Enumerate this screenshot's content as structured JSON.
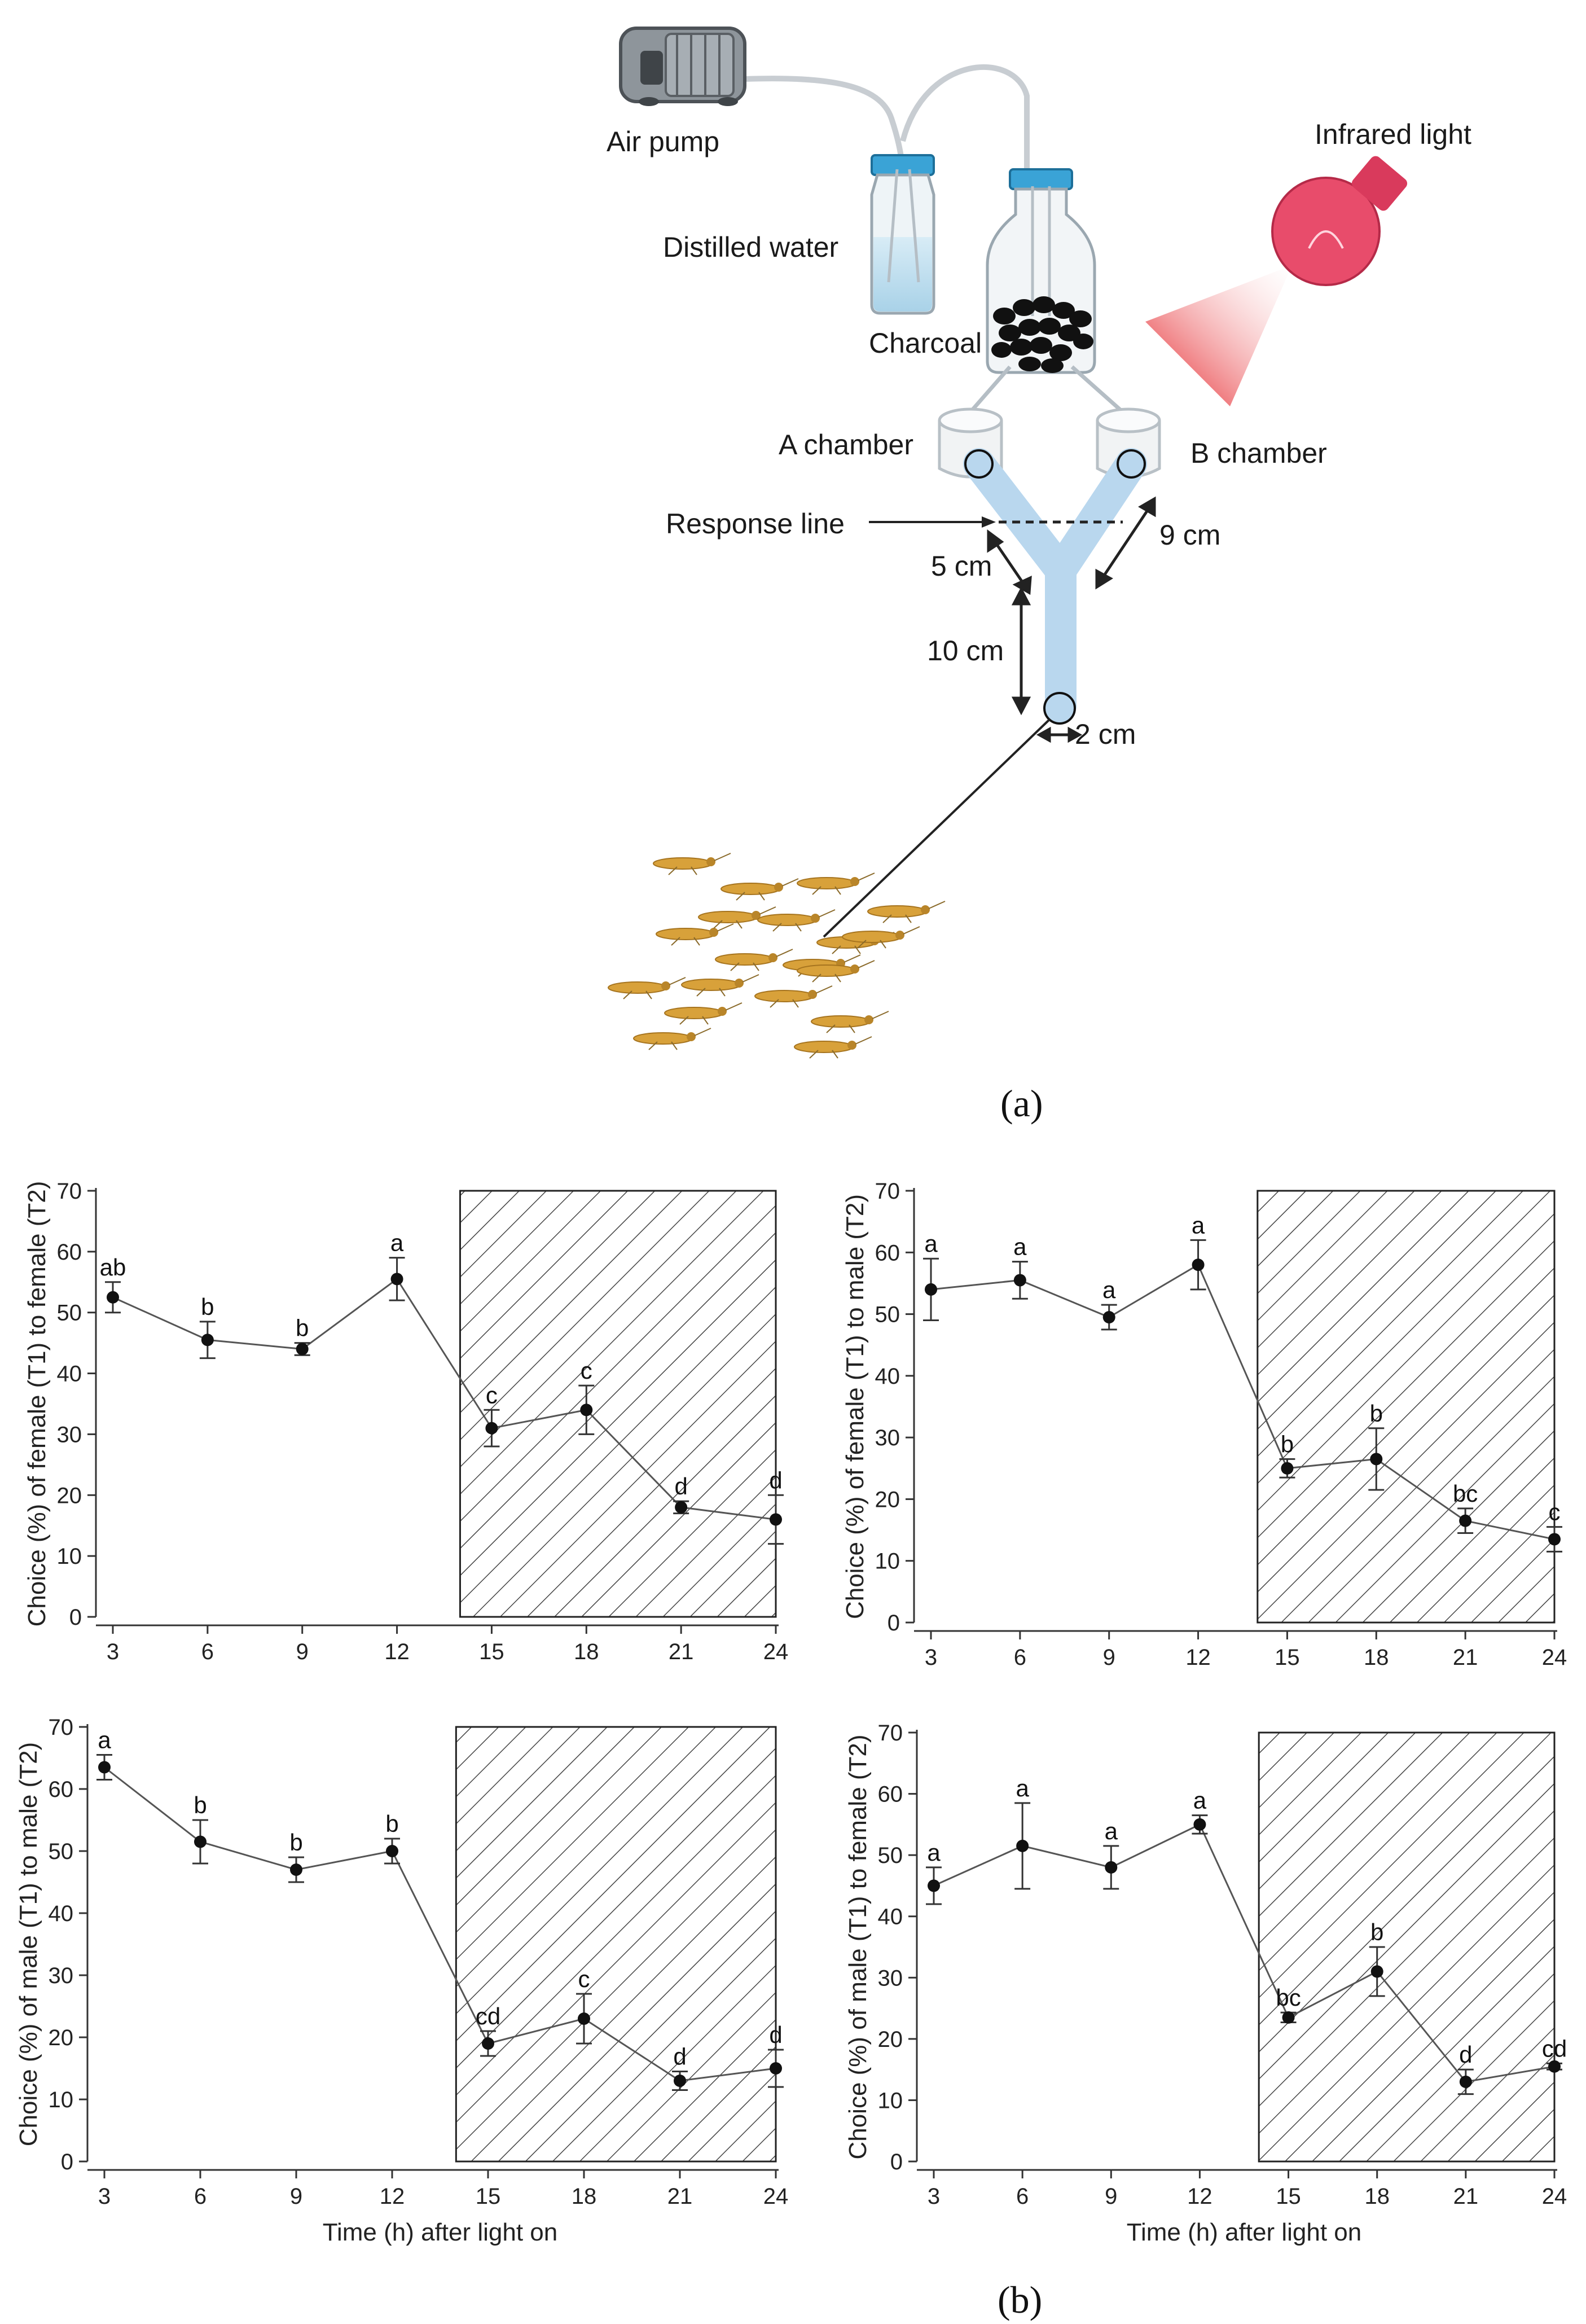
{
  "diagram": {
    "labels": {
      "air_pump": "Air pump",
      "distilled_water": "Distilled water",
      "charcoal": "Charcoal",
      "infrared_light": "Infrared light",
      "a_chamber": "A chamber",
      "b_chamber": "B chamber",
      "response_line": "Response line",
      "dim_5": "5 cm",
      "dim_9": "9 cm",
      "dim_10": "10 cm",
      "dim_2": "2 cm"
    },
    "caption": "(a)"
  },
  "caption_b": "(b)",
  "colors": {
    "tube": "#b9d7ee",
    "light": "#e84c6b",
    "beam": "#e3141a",
    "insect": "#d8a13a",
    "series": "#555555",
    "marker": "#111111"
  },
  "chart_data": [
    {
      "type": "line",
      "ylabel": "Choice (%) of female (T1) to female (T2)",
      "xlabel": "",
      "x": [
        3,
        6,
        9,
        12,
        15,
        18,
        21,
        24
      ],
      "values": [
        52.5,
        45.5,
        44,
        55.5,
        31,
        34,
        18,
        16
      ],
      "errors": [
        2.5,
        3,
        1,
        3.5,
        3,
        4,
        1,
        4
      ],
      "letters": [
        "ab",
        "b",
        "b",
        "a",
        "c",
        "c",
        "d",
        "d"
      ],
      "ylim": [
        0,
        70
      ],
      "yticks": [
        0,
        10,
        20,
        30,
        40,
        50,
        60,
        70
      ],
      "dark_period": [
        14,
        24
      ]
    },
    {
      "type": "line",
      "ylabel": "Choice (%) of female (T1) to male (T2)",
      "xlabel": "",
      "x": [
        3,
        6,
        9,
        12,
        15,
        18,
        21,
        24
      ],
      "values": [
        54,
        55.5,
        49.5,
        58,
        25,
        26.5,
        16.5,
        13.5
      ],
      "errors": [
        5,
        3,
        2,
        4,
        1.5,
        5,
        2,
        2
      ],
      "letters": [
        "a",
        "a",
        "a",
        "a",
        "b",
        "b",
        "bc",
        "c"
      ],
      "ylim": [
        0,
        70
      ],
      "yticks": [
        0,
        10,
        20,
        30,
        40,
        50,
        60,
        70
      ],
      "dark_period": [
        14,
        24
      ]
    },
    {
      "type": "line",
      "ylabel": "Choice (%) of male (T1) to male (T2)",
      "xlabel": "Time (h) after light on",
      "x": [
        3,
        6,
        9,
        12,
        15,
        18,
        21,
        24
      ],
      "values": [
        63.5,
        51.5,
        47,
        50,
        19,
        23,
        13,
        15
      ],
      "errors": [
        2,
        3.5,
        2,
        2,
        2,
        4,
        1.5,
        3
      ],
      "letters": [
        "a",
        "b",
        "b",
        "b",
        "cd",
        "c",
        "d",
        "d"
      ],
      "ylim": [
        0,
        70
      ],
      "yticks": [
        0,
        10,
        20,
        30,
        40,
        50,
        60,
        70
      ],
      "dark_period": [
        14,
        24
      ]
    },
    {
      "type": "line",
      "ylabel": "Choice (%) of male (T1)  to female (T2)",
      "xlabel": "Time (h) after light on",
      "x": [
        3,
        6,
        9,
        12,
        15,
        18,
        21,
        24
      ],
      "values": [
        45,
        51.5,
        48,
        55,
        23.5,
        31,
        13,
        15.5
      ],
      "errors": [
        3,
        7,
        3.5,
        1.5,
        0.8,
        4,
        2,
        0.5
      ],
      "letters": [
        "a",
        "a",
        "a",
        "a",
        "bc",
        "b",
        "d",
        "cd"
      ],
      "ylim": [
        0,
        70
      ],
      "yticks": [
        0,
        10,
        20,
        30,
        40,
        50,
        60,
        70
      ],
      "dark_period": [
        14,
        24
      ]
    }
  ]
}
